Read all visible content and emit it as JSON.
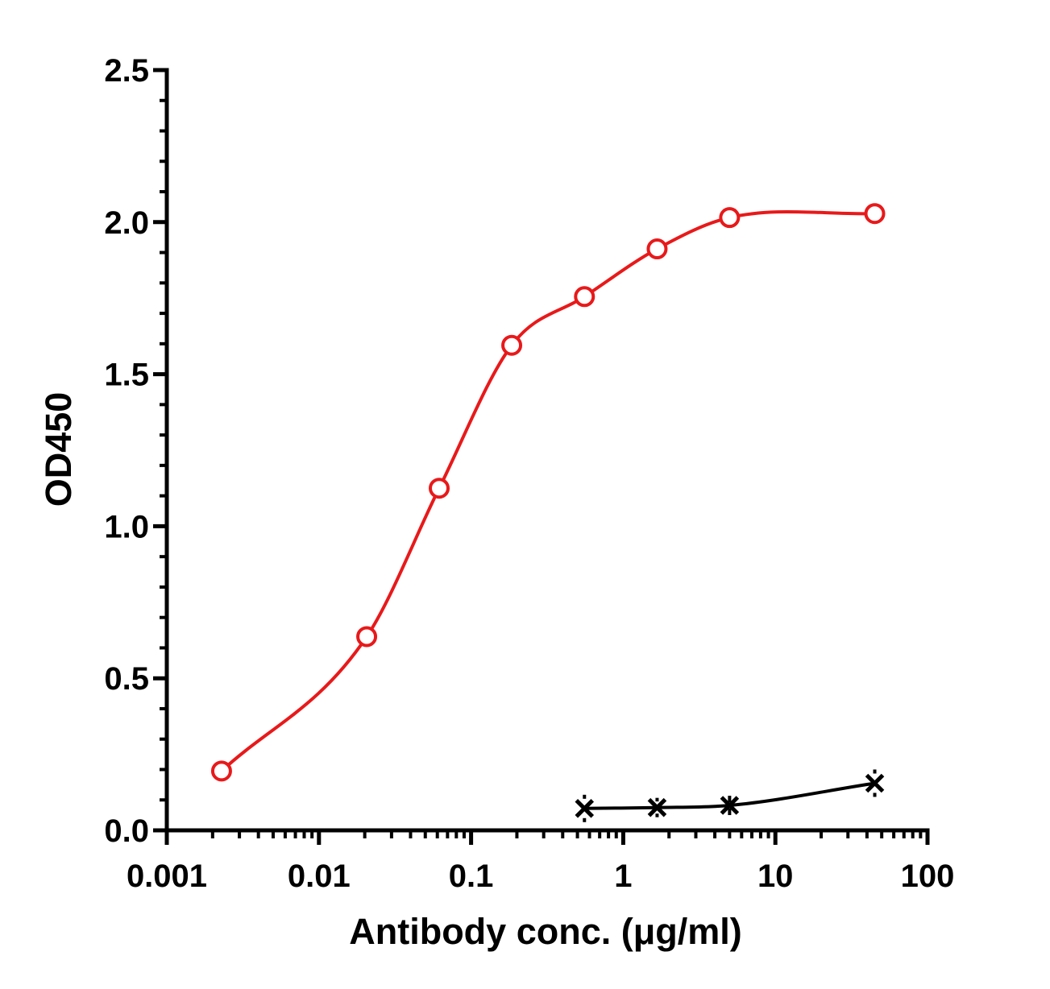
{
  "chart_data": {
    "type": "scatter",
    "title": "",
    "xlabel": "Antibody conc. (μg/ml)",
    "ylabel": "OD450",
    "x_scale": "log",
    "xlim": [
      0.001,
      100
    ],
    "ylim": [
      0,
      2.5
    ],
    "x_tick_labels": [
      "0.001",
      "0.01",
      "0.1",
      "1",
      "10",
      "100"
    ],
    "y_tick_labels": [
      "0.0",
      "0.5",
      "1.0",
      "1.5",
      "2.0",
      "2.5"
    ],
    "grid": false,
    "legend": "none",
    "series": [
      {
        "color": "#e8191a",
        "marker": "open-circle",
        "x": [
          0.00229,
          0.0206,
          0.0617,
          0.185,
          0.556,
          1.67,
          5.0,
          45.0
        ],
        "y": [
          0.195,
          0.637,
          1.125,
          1.595,
          1.755,
          1.912,
          2.015,
          2.028
        ],
        "error_bars": [
          0,
          0,
          0,
          0,
          0,
          0,
          0,
          0
        ]
      },
      {
        "color": "#000000",
        "marker": "x",
        "x": [
          0.556,
          1.67,
          5.0,
          45.0
        ],
        "y": [
          0.072,
          0.075,
          0.082,
          0.155
        ],
        "error_bars": [
          0.045,
          0.02,
          0.01,
          0.045
        ]
      }
    ]
  }
}
